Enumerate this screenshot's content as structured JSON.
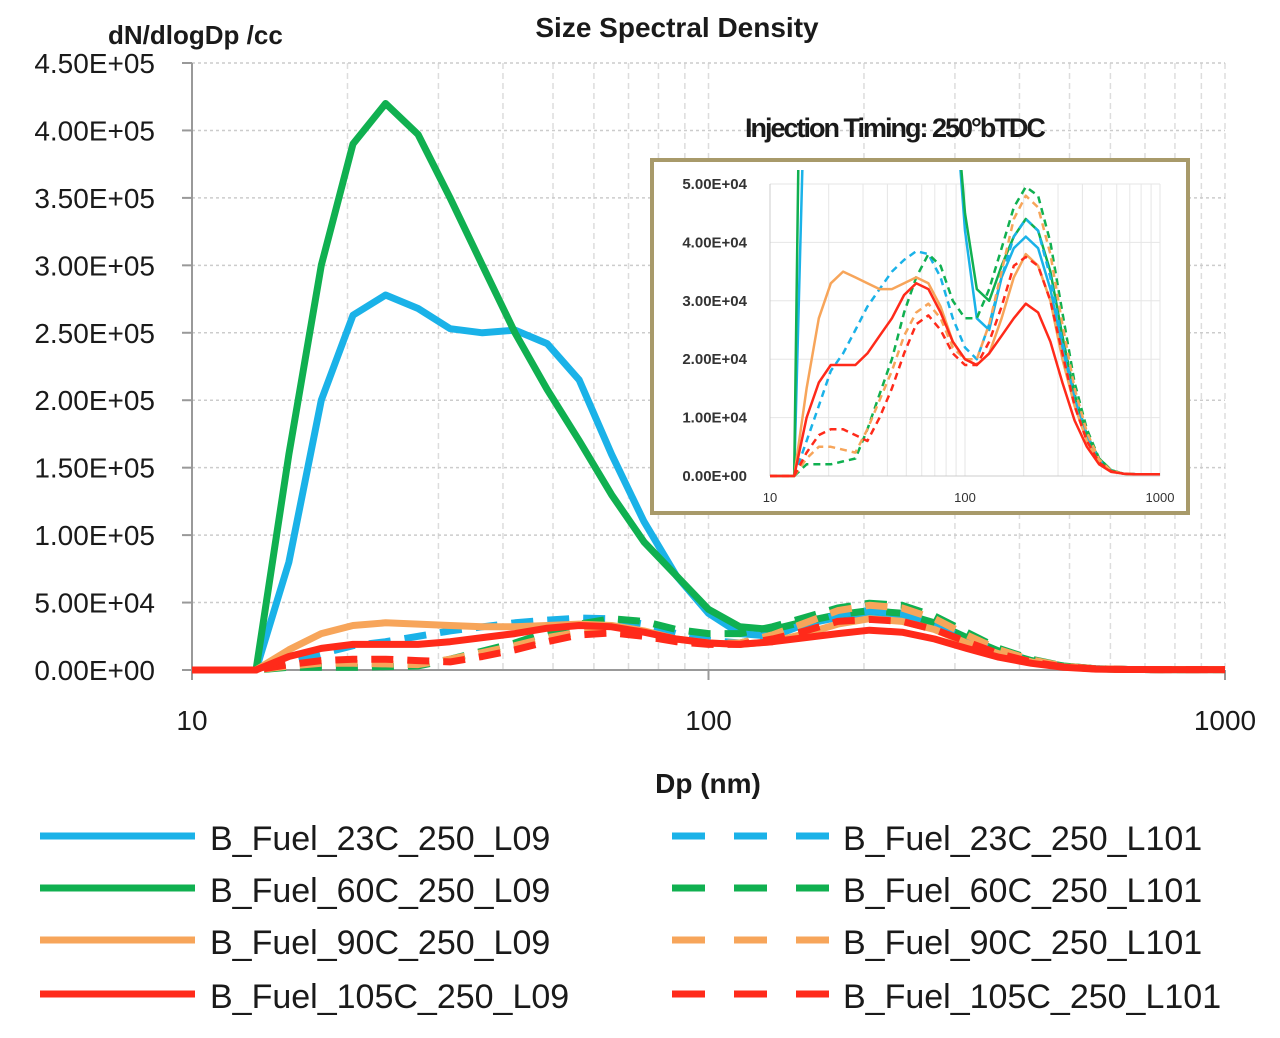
{
  "chart_data": {
    "type": "line",
    "title": "Size Spectral Density",
    "ylabel": "dN/dlogDp /cc",
    "xlabel": "Dp (nm)",
    "xscale": "log",
    "xlim": [
      10,
      1000
    ],
    "ylim": [
      0,
      450000
    ],
    "xticks": [
      "10",
      "100",
      "1000"
    ],
    "yticks": [
      "0.00E+00",
      "5.00E+04",
      "1.00E+05",
      "1.50E+05",
      "2.00E+05",
      "2.50E+05",
      "3.00E+05",
      "3.50E+05",
      "4.00E+05",
      "4.50E+05"
    ],
    "grid": true,
    "legend_placement": "bottom",
    "x": [
      10,
      13.3,
      15.4,
      17.8,
      20.5,
      23.7,
      27.4,
      31.6,
      36.5,
      42.2,
      48.7,
      56.2,
      64.9,
      75,
      86.6,
      100,
      115,
      133,
      154,
      178,
      205,
      237,
      274,
      316,
      365,
      422,
      487,
      562,
      649,
      750,
      866,
      1000
    ],
    "series": [
      {
        "name": "B_Fuel_23C_250_L09",
        "color": "#1ab2e8",
        "style": "solid",
        "values": [
          0,
          0,
          80000,
          200000,
          263000,
          278000,
          268000,
          253000,
          250000,
          252000,
          242000,
          215000,
          160000,
          110000,
          70000,
          42000,
          27000,
          25000,
          34000,
          39000,
          41000,
          39000,
          32000,
          22000,
          13000,
          6500,
          2500,
          900,
          400,
          300,
          300,
          300
        ]
      },
      {
        "name": "B_Fuel_60C_250_L09",
        "color": "#10b050",
        "style": "solid",
        "values": [
          0,
          0,
          160000,
          300000,
          390000,
          420000,
          397000,
          350000,
          300000,
          250000,
          208000,
          170000,
          130000,
          95000,
          70000,
          45000,
          32000,
          30000,
          36000,
          41000,
          44000,
          42000,
          35000,
          24000,
          14000,
          7000,
          3000,
          1000,
          400,
          300,
          300,
          300
        ]
      },
      {
        "name": "B_Fuel_90C_250_L09",
        "color": "#f7a55a",
        "style": "solid",
        "values": [
          0,
          0,
          15000,
          27000,
          33000,
          35000,
          34000,
          33000,
          32000,
          32000,
          33000,
          34000,
          33000,
          29000,
          23000,
          20000,
          19000,
          21000,
          27000,
          34000,
          38000,
          36000,
          30000,
          20000,
          12000,
          6000,
          2300,
          800,
          400,
          300,
          300,
          300
        ]
      },
      {
        "name": "B_Fuel_105C_250_L09",
        "color": "#ff2a1a",
        "style": "solid",
        "values": [
          0,
          0,
          10000,
          16000,
          19000,
          19000,
          19000,
          21000,
          24000,
          27000,
          31000,
          33000,
          32000,
          28000,
          23000,
          20000,
          19000,
          21000,
          24000,
          27000,
          29500,
          28000,
          23000,
          16000,
          9500,
          5000,
          2000,
          700,
          400,
          300,
          300,
          300
        ]
      },
      {
        "name": "B_Fuel_23C_250_L101",
        "color": "#1ab2e8",
        "style": "dashed",
        "values": [
          0,
          0,
          6000,
          12000,
          18000,
          21000,
          25000,
          29000,
          32000,
          35000,
          37000,
          38500,
          38000,
          34000,
          27000,
          22000,
          20000,
          26000,
          34000,
          41000,
          44000,
          42000,
          34000,
          23000,
          13500,
          7000,
          2700,
          900,
          400,
          300,
          300,
          300
        ]
      },
      {
        "name": "B_Fuel_60C_250_L101",
        "color": "#10b050",
        "style": "dashed",
        "values": [
          0,
          0,
          2000,
          2000,
          2000,
          2500,
          3000,
          8000,
          14000,
          20000,
          28000,
          34000,
          38000,
          36000,
          30000,
          27000,
          27000,
          32000,
          39000,
          46000,
          49500,
          48000,
          40000,
          28000,
          16000,
          8000,
          3000,
          1000,
          400,
          300,
          300,
          300
        ]
      },
      {
        "name": "B_Fuel_90C_250_L101",
        "color": "#f7a55a",
        "style": "dashed",
        "values": [
          0,
          0,
          3000,
          5000,
          5000,
          4500,
          4000,
          8000,
          13000,
          18000,
          24000,
          28000,
          29500,
          27000,
          22000,
          20000,
          20000,
          26000,
          35000,
          44000,
          48000,
          46000,
          38000,
          26000,
          15000,
          7500,
          2800,
          900,
          400,
          300,
          300,
          300
        ]
      },
      {
        "name": "B_Fuel_105C_250_L101",
        "color": "#ff2a1a",
        "style": "dashed",
        "values": [
          0,
          0,
          4000,
          7000,
          8000,
          8000,
          7000,
          6000,
          10000,
          15000,
          21000,
          26000,
          27500,
          25000,
          21000,
          19000,
          19000,
          23000,
          29000,
          36000,
          37500,
          36000,
          30000,
          21000,
          12000,
          6000,
          2300,
          800,
          400,
          300,
          300,
          300
        ]
      }
    ],
    "inset": {
      "title": "Injection Timing: 250°bTDC",
      "xlim": [
        10,
        1000
      ],
      "ylim": [
        0,
        50000
      ],
      "xticks": [
        "10",
        "100",
        "1000"
      ],
      "yticks": [
        "0.00E+00",
        "1.00E+04",
        "2.00E+04",
        "3.00E+04",
        "4.00E+04",
        "5.00E+04"
      ],
      "border_color": "#a89a6a"
    }
  }
}
